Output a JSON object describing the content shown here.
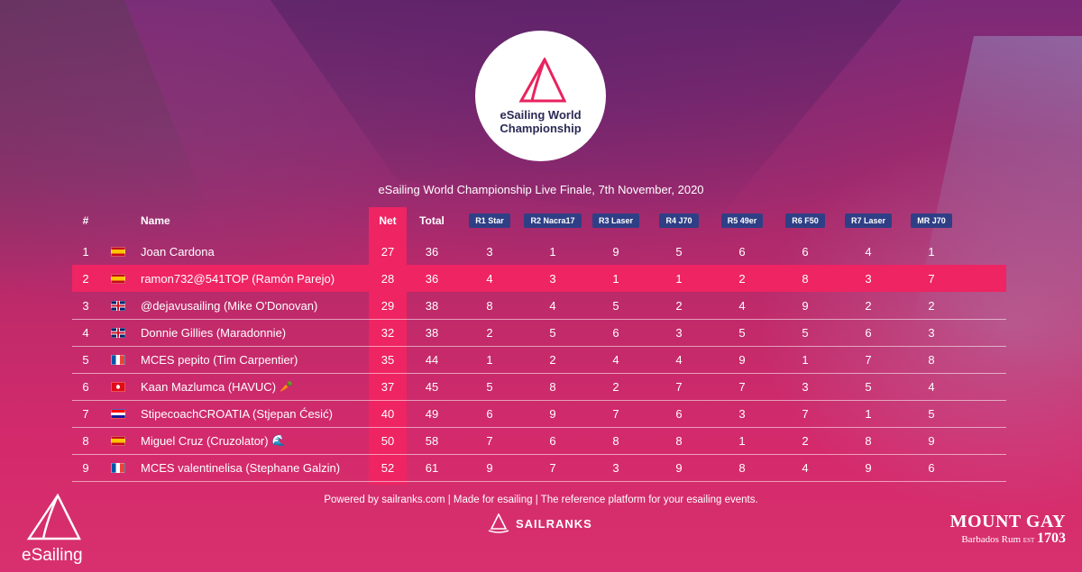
{
  "logo": {
    "line1": "eSailing World",
    "line2": "Championship"
  },
  "table_title": "eSailing World Championship Live Finale, 7th November, 2020",
  "headers": {
    "pos": "#",
    "name": "Name",
    "net": "Net",
    "total": "Total",
    "races": [
      "R1 Star",
      "R2 Nacra17",
      "R3 Laser",
      "R4 J70",
      "R5 49er",
      "R6 F50",
      "R7 Laser",
      "MR J70"
    ]
  },
  "rows": [
    {
      "pos": "1",
      "flag": "es",
      "name": "Joan Cardona",
      "icon": "",
      "net": "27",
      "total": "36",
      "races": [
        "3",
        "1",
        "9",
        "5",
        "6",
        "6",
        "4",
        "1"
      ]
    },
    {
      "pos": "2",
      "flag": "es",
      "name": "ramon732@541TOP (Ramón Parejo)",
      "icon": "",
      "net": "28",
      "total": "36",
      "races": [
        "4",
        "3",
        "1",
        "1",
        "2",
        "8",
        "3",
        "7"
      ],
      "highlight": true
    },
    {
      "pos": "3",
      "flag": "gb",
      "name": "@dejavusailing (Mike O'Donovan)",
      "icon": "",
      "net": "29",
      "total": "38",
      "races": [
        "8",
        "4",
        "5",
        "2",
        "4",
        "9",
        "2",
        "2"
      ]
    },
    {
      "pos": "4",
      "flag": "gb",
      "name": "Donnie Gillies (Maradonnie)",
      "icon": "",
      "net": "32",
      "total": "38",
      "races": [
        "2",
        "5",
        "6",
        "3",
        "5",
        "5",
        "6",
        "3"
      ]
    },
    {
      "pos": "5",
      "flag": "fr",
      "name": "MCES pepito (Tim Carpentier)",
      "icon": "",
      "net": "35",
      "total": "44",
      "races": [
        "1",
        "2",
        "4",
        "4",
        "9",
        "1",
        "7",
        "8"
      ]
    },
    {
      "pos": "6",
      "flag": "tr",
      "name": "Kaan Mazlumca (HAVUC)",
      "icon": "🥕",
      "net": "37",
      "total": "45",
      "races": [
        "5",
        "8",
        "2",
        "7",
        "7",
        "3",
        "5",
        "4"
      ]
    },
    {
      "pos": "7",
      "flag": "hr",
      "name": "StipecoachCROATIA (Stjepan Ćesić)",
      "icon": "",
      "net": "40",
      "total": "49",
      "races": [
        "6",
        "9",
        "7",
        "6",
        "3",
        "7",
        "1",
        "5"
      ]
    },
    {
      "pos": "8",
      "flag": "es",
      "name": "Miguel Cruz (Cruzolator)",
      "icon": "🌊",
      "net": "50",
      "total": "58",
      "races": [
        "7",
        "6",
        "8",
        "8",
        "1",
        "2",
        "8",
        "9"
      ]
    },
    {
      "pos": "9",
      "flag": "fr",
      "name": "MCES valentinelisa (Stephane Galzin)",
      "icon": "",
      "net": "52",
      "total": "61",
      "races": [
        "9",
        "7",
        "3",
        "9",
        "8",
        "4",
        "9",
        "6"
      ]
    }
  ],
  "footer": {
    "powered_by": "Powered by sailranks.com | Made for esailing | The reference platform for your esailing events.",
    "sailranks_label": "SAILRANKS"
  },
  "brand_left": "eSailing",
  "sponsor": {
    "name": "MOUNT GAY",
    "sub": "Barbados Rum",
    "est": "EST",
    "year": "1703"
  },
  "colors": {
    "accent": "#ee2463",
    "badge": "#2f3f86",
    "logo_text": "#2a2a55"
  }
}
